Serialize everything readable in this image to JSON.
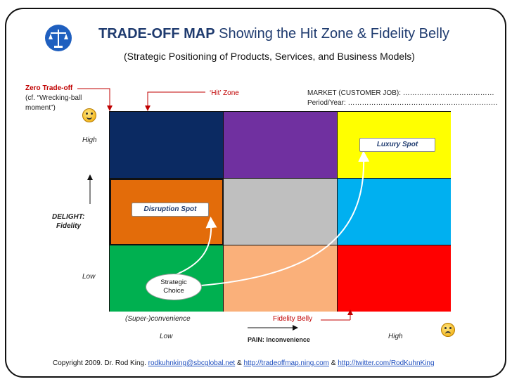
{
  "header": {
    "title_bold": "TRADE-OFF MAP",
    "title_rest": " Showing the Hit Zone & Fidelity Belly",
    "subtitle": "(Strategic Positioning of Products, Services, and Business Models)"
  },
  "annotations": {
    "zero_tradeoff": "Zero Trade-off",
    "zero_tradeoff_note_1": "(cf. “Wrecking-ball",
    "zero_tradeoff_note_2": "moment”)",
    "hit_zone": "‘Hit’ Zone",
    "market": "MARKET (CUSTOMER JOB): …………………………………",
    "period": "Period/Year: ……………………………………………………….",
    "fidelity_belly": "Fidelity Belly"
  },
  "axis": {
    "y_high": "High",
    "y_low": "Low",
    "y_title_1": "DELIGHT:",
    "y_title_2": "Fidelity",
    "x_left": "(Super-)convenience",
    "x_low": "Low",
    "x_high": "High",
    "x_title": "PAIN: Inconvenience"
  },
  "grid": {
    "colors": [
      [
        "#0b2a62",
        "#7030a0",
        "#ffff00"
      ],
      [
        "#e36c0a",
        "#bfbfbf",
        "#00b0f0"
      ],
      [
        "#00b050",
        "#fab07a",
        "#ff0000"
      ]
    ]
  },
  "labels": {
    "luxury_spot": "Luxury Spot",
    "disruption_spot": "Disruption Spot",
    "strategic_choice_1": "Strategic",
    "strategic_choice_2": "Choice"
  },
  "icons": {
    "logo": "scales-of-justice-icon",
    "happy": "smiley-face-icon",
    "sad": "frowning-face-icon"
  },
  "footer": {
    "copyright": "Copyright 2009. Dr. Rod King. ",
    "email": "rodkuhnking@sbcglobal.net",
    "amp1": " & ",
    "link1": "http://tradeoffmap.ning.com",
    "amp2": " & ",
    "link2": "http://twitter.com/RodKuhnKing"
  }
}
